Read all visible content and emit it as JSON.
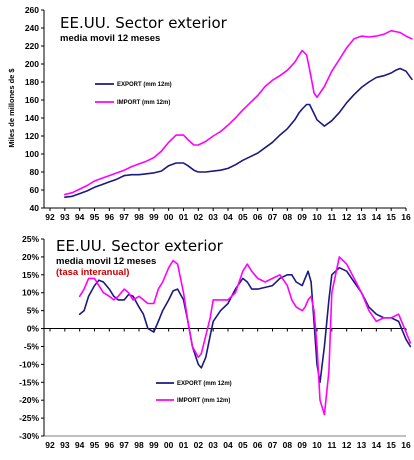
{
  "chart_data": [
    {
      "type": "line",
      "title": "EE.UU. Sector exterior",
      "subtitle": "media movil 12 meses",
      "ylabel": "Miles de millones de $",
      "ylim": [
        40,
        260
      ],
      "yticks": [
        "40",
        "60",
        "80",
        "100",
        "120",
        "140",
        "160",
        "180",
        "200",
        "220",
        "240",
        "260"
      ],
      "xticks": [
        "92",
        "93",
        "94",
        "95",
        "96",
        "97",
        "98",
        "99",
        "00",
        "01",
        "02",
        "03",
        "04",
        "05",
        "06",
        "07",
        "08",
        "09",
        "10",
        "11",
        "12",
        "13",
        "14",
        "15",
        "16"
      ],
      "grid": false,
      "legend_position": "center-left",
      "series": [
        {
          "name": "EXPORT (mm 12m)",
          "color": "#1a1a80",
          "x": [
            93.0,
            93.5,
            94.0,
            94.5,
            95.0,
            95.5,
            96.0,
            96.5,
            97.0,
            97.5,
            98.0,
            98.5,
            99.0,
            99.5,
            100.0,
            100.5,
            101.0,
            101.3,
            101.7,
            102.0,
            102.5,
            103.0,
            103.5,
            104.0,
            104.5,
            105.0,
            105.5,
            106.0,
            106.5,
            107.0,
            107.5,
            108.0,
            108.5,
            108.8,
            109.0,
            109.3,
            109.5,
            109.8,
            110.0,
            110.5,
            111.0,
            111.5,
            112.0,
            112.5,
            113.0,
            113.5,
            114.0,
            114.5,
            115.0,
            115.3,
            115.6,
            116.0,
            116.4
          ],
          "y": [
            52,
            53,
            56,
            59,
            63,
            66,
            69,
            72,
            76,
            77,
            77,
            78,
            79,
            81,
            87,
            90,
            90,
            87,
            82,
            80,
            80,
            81,
            82,
            84,
            88,
            93,
            97,
            101,
            107,
            113,
            121,
            128,
            138,
            146,
            150,
            155,
            155,
            145,
            138,
            131,
            137,
            146,
            157,
            166,
            174,
            180,
            185,
            187,
            190,
            193,
            195,
            192,
            183
          ]
        },
        {
          "name": "IMPORT (mm 12m)",
          "color": "#ff00ff",
          "x": [
            93.0,
            93.5,
            94.0,
            94.5,
            95.0,
            95.5,
            96.0,
            96.5,
            97.0,
            97.5,
            98.0,
            98.5,
            99.0,
            99.5,
            100.0,
            100.5,
            101.0,
            101.3,
            101.7,
            102.0,
            102.5,
            103.0,
            103.5,
            104.0,
            104.5,
            105.0,
            105.5,
            106.0,
            106.5,
            107.0,
            107.5,
            108.0,
            108.5,
            108.8,
            109.0,
            109.3,
            109.5,
            109.8,
            110.0,
            110.5,
            111.0,
            111.5,
            112.0,
            112.5,
            113.0,
            113.5,
            114.0,
            114.5,
            115.0,
            115.3,
            115.6,
            116.0,
            116.4
          ],
          "y": [
            55,
            57,
            61,
            65,
            70,
            73,
            76,
            79,
            82,
            86,
            89,
            92,
            96,
            103,
            113,
            121,
            121,
            116,
            110,
            110,
            114,
            120,
            125,
            132,
            140,
            149,
            157,
            165,
            175,
            182,
            187,
            193,
            202,
            210,
            215,
            210,
            194,
            168,
            163,
            175,
            192,
            205,
            218,
            228,
            231,
            230,
            231,
            233,
            237,
            236,
            235,
            231,
            228
          ]
        }
      ]
    },
    {
      "type": "line",
      "title": "EE.UU. Sector exterior",
      "subtitle": "media movil 12 meses",
      "annotation": "(tasa interanual)",
      "ylim": [
        -30,
        25
      ],
      "yticks": [
        "-30%",
        "-25%",
        "-20%",
        "-15%",
        "-10%",
        "-5%",
        "0%",
        "5%",
        "10%",
        "15%",
        "20%",
        "25%"
      ],
      "xticks": [
        "92",
        "93",
        "94",
        "95",
        "96",
        "97",
        "98",
        "99",
        "00",
        "01",
        "02",
        "03",
        "04",
        "05",
        "06",
        "07",
        "08",
        "09",
        "10",
        "11",
        "12",
        "13",
        "14",
        "15",
        "16"
      ],
      "grid": false,
      "legend_position": "bottom-center",
      "series": [
        {
          "name": "EXPORT (mm 12m)",
          "color": "#1a1a80",
          "x": [
            94.0,
            94.3,
            94.6,
            95.0,
            95.3,
            95.6,
            96.0,
            96.3,
            96.6,
            97.0,
            97.3,
            97.6,
            98.0,
            98.3,
            98.6,
            99.0,
            99.3,
            99.6,
            100.0,
            100.3,
            100.6,
            101.0,
            101.3,
            101.6,
            102.0,
            102.2,
            102.5,
            102.8,
            103.0,
            103.5,
            104.0,
            104.5,
            105.0,
            105.3,
            105.6,
            106.0,
            106.5,
            107.0,
            107.5,
            108.0,
            108.3,
            108.6,
            109.0,
            109.2,
            109.4,
            109.6,
            109.8,
            110.0,
            110.2,
            110.5,
            110.8,
            111.0,
            111.5,
            112.0,
            112.5,
            113.0,
            113.5,
            114.0,
            114.5,
            115.0,
            115.5,
            116.0,
            116.3
          ],
          "y": [
            4,
            5,
            9,
            12,
            13.5,
            13,
            11,
            9,
            8,
            8,
            9.5,
            9,
            6,
            4,
            0,
            -1,
            2,
            5,
            8,
            10.5,
            11,
            8,
            2,
            -5,
            -10,
            -11,
            -8,
            -2,
            2,
            5,
            7,
            11,
            14,
            13,
            11,
            11,
            11.5,
            12,
            14,
            15,
            15,
            13,
            12,
            14,
            16,
            13,
            2,
            -10,
            -15,
            -5,
            8,
            15,
            17,
            16,
            13,
            10,
            6,
            4,
            3,
            3,
            2,
            -3,
            -5
          ]
        },
        {
          "name": "IMPORT (mm 12m)",
          "color": "#ff00ff",
          "x": [
            94.0,
            94.3,
            94.6,
            95.0,
            95.3,
            95.6,
            96.0,
            96.3,
            96.6,
            97.0,
            97.3,
            97.6,
            98.0,
            98.3,
            98.6,
            99.0,
            99.3,
            99.6,
            100.0,
            100.3,
            100.6,
            101.0,
            101.3,
            101.6,
            102.0,
            102.2,
            102.5,
            102.8,
            103.0,
            103.5,
            104.0,
            104.5,
            105.0,
            105.3,
            105.6,
            106.0,
            106.5,
            107.0,
            107.5,
            108.0,
            108.3,
            108.6,
            109.0,
            109.2,
            109.4,
            109.6,
            109.8,
            110.0,
            110.2,
            110.5,
            110.8,
            111.0,
            111.5,
            112.0,
            112.5,
            113.0,
            113.5,
            114.0,
            114.5,
            115.0,
            115.5,
            116.0,
            116.3
          ],
          "y": [
            9,
            11,
            14,
            14,
            12,
            10,
            9,
            8,
            9,
            11,
            10,
            8,
            9,
            8,
            7,
            7,
            11,
            13,
            17,
            19,
            18,
            10,
            2,
            -5,
            -8,
            -7,
            -2,
            3,
            8,
            8,
            8,
            10,
            16,
            18,
            16,
            14,
            13,
            14,
            15,
            12,
            8,
            6,
            5,
            6,
            8,
            9,
            5,
            -5,
            -20,
            -24,
            -12,
            10,
            20,
            18,
            14,
            10,
            5,
            2,
            3,
            3,
            4,
            -1,
            -4
          ]
        }
      ]
    }
  ]
}
